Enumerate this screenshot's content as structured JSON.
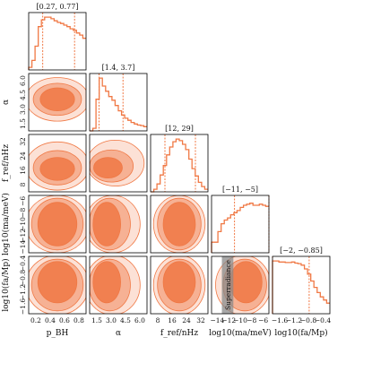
{
  "chart_data": {
    "type": "corner",
    "color": "#f07844",
    "parameters": [
      {
        "key": "pbh",
        "label": "p_BH",
        "interval": "[0.27, 0.77]",
        "ticks": [
          "0.2",
          "0.4",
          "0.6",
          "0.8"
        ],
        "range": [
          0.05,
          0.95
        ],
        "lo": 0.27,
        "hi": 0.77,
        "hist": [
          0.05,
          0.18,
          0.45,
          0.82,
          0.95,
          1.0,
          1.0,
          0.97,
          0.93,
          0.9,
          0.88,
          0.85,
          0.82,
          0.78,
          0.75,
          0.7,
          0.66,
          0.6
        ]
      },
      {
        "key": "alpha",
        "label": "α",
        "interval": "[1.4, 3.7]",
        "ticks": [
          "1.5",
          "3.0",
          "4.5",
          "6.0"
        ],
        "range": [
          0.5,
          6.0
        ],
        "lo": 1.4,
        "hi": 3.7,
        "hist": [
          0.0,
          0.05,
          0.6,
          1.0,
          0.85,
          0.75,
          0.65,
          0.58,
          0.48,
          0.38,
          0.3,
          0.24,
          0.2,
          0.16,
          0.13,
          0.11,
          0.1,
          0.08
        ]
      },
      {
        "key": "fref",
        "label": "f_ref/nHz",
        "interval": "[12, 29]",
        "ticks": [
          "8",
          "16",
          "24",
          "32"
        ],
        "range": [
          4,
          36
        ],
        "lo": 12,
        "hi": 29,
        "hist": [
          0.0,
          0.05,
          0.15,
          0.32,
          0.5,
          0.7,
          0.85,
          0.95,
          1.0,
          0.97,
          0.9,
          0.8,
          0.62,
          0.44,
          0.3,
          0.18,
          0.1,
          0.05
        ]
      },
      {
        "key": "ma",
        "label": "log10(ma/meV)",
        "interval": "[−11, −5]",
        "ticks": [
          "−14",
          "−12",
          "−10",
          "−8",
          "−6"
        ],
        "range": [
          -15,
          -5
        ],
        "lo": -11,
        "hi": -5,
        "hist": [
          0.2,
          0.2,
          0.4,
          0.55,
          0.62,
          0.66,
          0.72,
          0.76,
          0.8,
          0.86,
          0.9,
          0.92,
          0.94,
          0.9,
          0.9,
          0.92,
          0.9,
          0.88
        ]
      },
      {
        "key": "fa",
        "label": "log10(fa/Mp)",
        "interval": "[−2, −0.85]",
        "ticks": [
          "−1.6",
          "−1.2",
          "−0.8",
          "−0.4"
        ],
        "range": [
          -2.0,
          -0.2
        ],
        "lo": -2.0,
        "hi": -0.85,
        "hist": [
          1.0,
          1.0,
          0.98,
          0.98,
          0.97,
          0.97,
          0.98,
          0.96,
          0.95,
          0.92,
          0.85,
          0.75,
          0.62,
          0.5,
          0.4,
          0.32,
          0.26,
          0.2
        ]
      }
    ],
    "yaxis_labels": [
      "α",
      "f_ref/nHz",
      "log10(ma/meV)",
      "log10(fa/Mp)"
    ],
    "xaxis_labels": [
      "p_BH",
      "α",
      "f_ref/nHz",
      "log10(ma/meV)",
      "log10(fa/Mp)"
    ],
    "annotation": "Superradiance"
  }
}
